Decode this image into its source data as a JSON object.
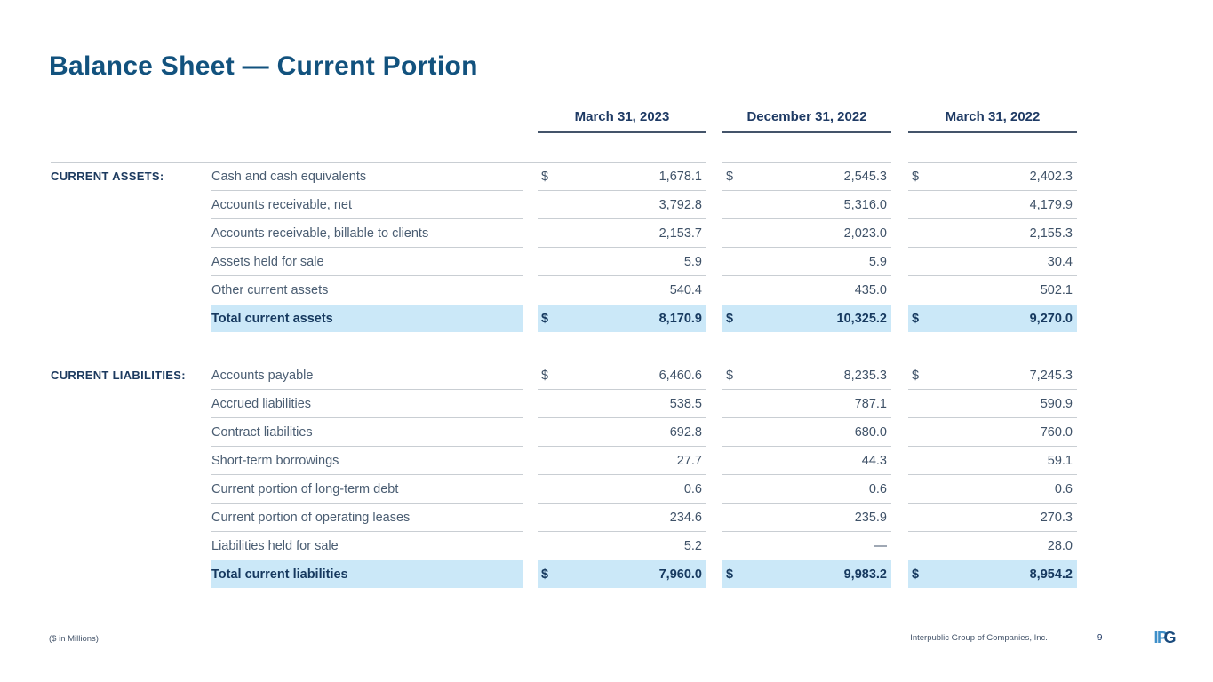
{
  "slide": {
    "title": "Balance Sheet — Current Portion",
    "footnote": "($ in Millions)",
    "footer": {
      "company": "Interpublic Group of Companies, Inc.",
      "page": "9",
      "logo": {
        "ip": "IP",
        "g": "G"
      }
    }
  },
  "colors": {
    "title_blue": "#12527E",
    "header_navy": "#1E3A64",
    "body_slate": "#4A5D72",
    "highlight_band": "#CBE8F8",
    "total_navy": "#16395F",
    "row_line_gray": "#C9CED3",
    "logo_light_blue": "#3E8FC9",
    "logo_dark_blue": "#1A4B7D"
  },
  "table": {
    "currency": "$",
    "columns": [
      "March 31, 2023",
      "December 31, 2022",
      "March 31, 2022"
    ],
    "sections": [
      {
        "label": "CURRENT ASSETS:",
        "rows": [
          {
            "label": "Cash and cash equivalents",
            "dollar": true,
            "values": [
              "1,678.1",
              "2,545.3",
              "2,402.3"
            ]
          },
          {
            "label": "Accounts receivable, net",
            "dollar": false,
            "values": [
              "3,792.8",
              "5,316.0",
              "4,179.9"
            ]
          },
          {
            "label": "Accounts receivable, billable to clients",
            "dollar": false,
            "values": [
              "2,153.7",
              "2,023.0",
              "2,155.3"
            ]
          },
          {
            "label": "Assets held for sale",
            "dollar": false,
            "values": [
              "5.9",
              "5.9",
              "30.4"
            ]
          },
          {
            "label": "Other current assets",
            "dollar": false,
            "values": [
              "540.4",
              "435.0",
              "502.1"
            ]
          }
        ],
        "total": {
          "label": "Total current assets",
          "dollar": true,
          "values": [
            "8,170.9",
            "10,325.2",
            "9,270.0"
          ]
        }
      },
      {
        "label": "CURRENT LIABILITIES:",
        "rows": [
          {
            "label": "Accounts payable",
            "dollar": true,
            "values": [
              "6,460.6",
              "8,235.3",
              "7,245.3"
            ]
          },
          {
            "label": "Accrued liabilities",
            "dollar": false,
            "values": [
              "538.5",
              "787.1",
              "590.9"
            ]
          },
          {
            "label": "Contract liabilities",
            "dollar": false,
            "values": [
              "692.8",
              "680.0",
              "760.0"
            ]
          },
          {
            "label": "Short-term borrowings",
            "dollar": false,
            "values": [
              "27.7",
              "44.3",
              "59.1"
            ]
          },
          {
            "label": "Current portion of long-term debt",
            "dollar": false,
            "values": [
              "0.6",
              "0.6",
              "0.6"
            ]
          },
          {
            "label": "Current portion of operating leases",
            "dollar": false,
            "values": [
              "234.6",
              "235.9",
              "270.3"
            ]
          },
          {
            "label": "Liabilities held for sale",
            "dollar": false,
            "values": [
              "5.2",
              "—",
              "28.0"
            ]
          }
        ],
        "total": {
          "label": "Total current liabilities",
          "dollar": true,
          "values": [
            "7,960.0",
            "9,983.2",
            "8,954.2"
          ]
        }
      }
    ]
  }
}
